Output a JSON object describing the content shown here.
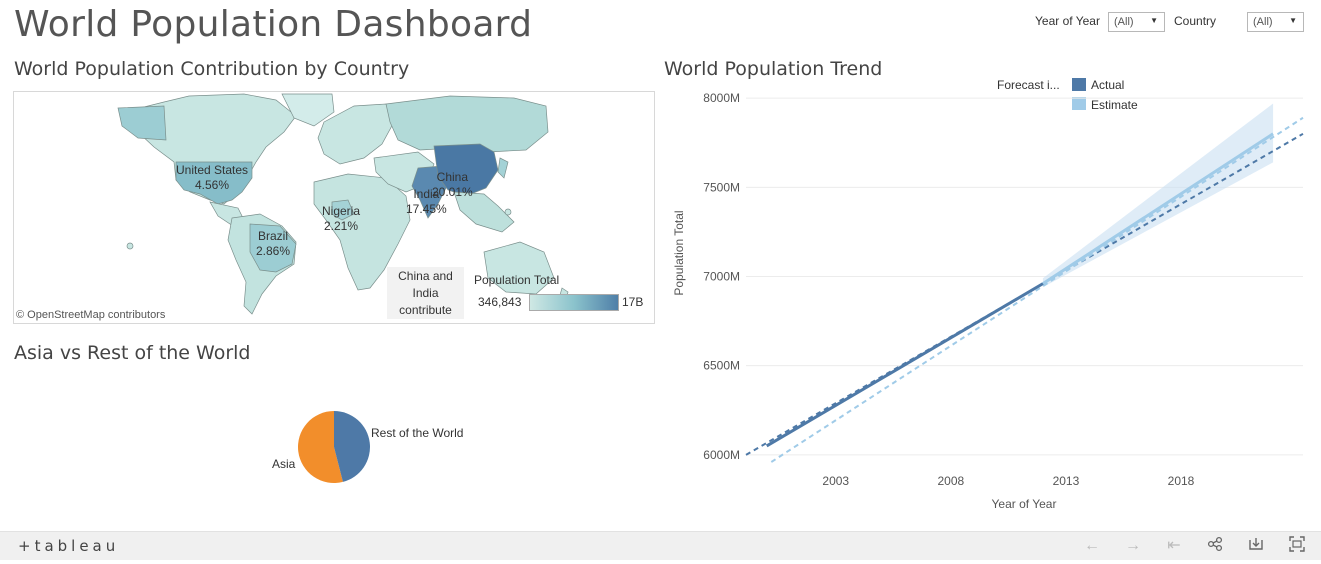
{
  "dashboard": {
    "title": "World Population Dashboard"
  },
  "filters": [
    {
      "label": "Year of Year",
      "value": "(All)"
    },
    {
      "label": "Country",
      "value": "(All)"
    }
  ],
  "map": {
    "title": "World Population Contribution by Country",
    "labels": [
      {
        "country": "United States",
        "value": "4.56%"
      },
      {
        "country": "Nigeria",
        "value": "2.21%"
      },
      {
        "country": "Brazil",
        "value": "2.86%"
      },
      {
        "country": "India",
        "value": "17.45%"
      },
      {
        "country": "China",
        "value": "20.01%"
      }
    ],
    "annotation": "China and India contribute",
    "credit": "© OpenStreetMap contributors",
    "legend": {
      "title": "Population Total",
      "min": "346,843",
      "max": "17B"
    }
  },
  "pie": {
    "title": "Asia vs Rest of the World",
    "slices": [
      {
        "label": "Rest of the World",
        "color": "#4e79a7"
      },
      {
        "label": "Asia",
        "color": "#f28e2b"
      }
    ]
  },
  "trend": {
    "title": "World Population Trend",
    "legend_title": "Forecast i...",
    "legend": [
      {
        "label": "Actual",
        "color": "#4e79a7"
      },
      {
        "label": "Estimate",
        "color": "#a0cbe8"
      }
    ],
    "y_axis_title": "Population Total",
    "x_axis_title": "Year of Year"
  },
  "chart_data": {
    "type": "line",
    "title": "World Population Trend",
    "xlabel": "Year of Year",
    "ylabel": "Population Total",
    "x_ticks": [
      2003,
      2008,
      2013,
      2018
    ],
    "y_ticks": [
      "6000M",
      "6500M",
      "7000M",
      "7500M",
      "8000M"
    ],
    "xlim": [
      1999.1,
      2023.3
    ],
    "ylim": [
      5960,
      8040
    ],
    "series": [
      {
        "name": "Actual",
        "x": [
          2000,
          2012
        ],
        "y": [
          6050,
          6960
        ]
      },
      {
        "name": "Estimate",
        "x": [
          2012,
          2022
        ],
        "y": [
          6960,
          7800
        ]
      }
    ],
    "trend_lines": [
      {
        "x": [
          1999.1,
          2023.3
        ],
        "y": [
          6000,
          7800
        ]
      },
      {
        "x": [
          2000.2,
          2023.3
        ],
        "y": [
          5960,
          7890
        ]
      }
    ],
    "forecast_band": {
      "x": [
        2012,
        2022
      ],
      "lower": [
        6940,
        7640
      ],
      "upper": [
        6990,
        7970
      ]
    },
    "legend_position": "top"
  },
  "footer": {
    "logo": "+tableau",
    "buttons": [
      "undo",
      "redo",
      "revert",
      "share",
      "download",
      "fullscreen"
    ]
  },
  "colors": {
    "actual": "#4e79a7",
    "estimate": "#a0cbe8",
    "asia": "#f28e2b",
    "rest": "#4e79a7",
    "map_low": "#cfe8e4",
    "map_high": "#4f7fa8"
  }
}
